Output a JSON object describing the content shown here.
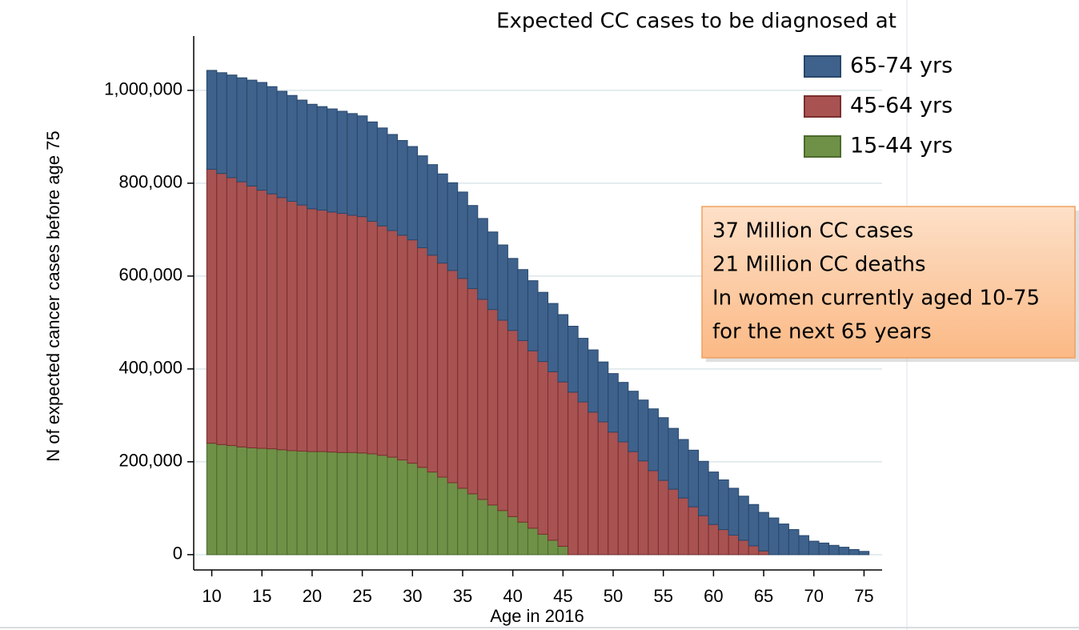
{
  "chart_data": {
    "type": "stacked_bar",
    "legend_title": "Expected CC cases to be diagnosed  at",
    "xlabel": "Age in 2016",
    "ylabel": "N of expected cancer cases before age 75",
    "annotation": [
      "37 Million CC cases",
      "21 Million CC deaths",
      "In women currently aged 10-75",
      "for the next 65 years"
    ],
    "x": [
      10,
      11,
      12,
      13,
      14,
      15,
      16,
      17,
      18,
      19,
      20,
      21,
      22,
      23,
      24,
      25,
      26,
      27,
      28,
      29,
      30,
      31,
      32,
      33,
      34,
      35,
      36,
      37,
      38,
      39,
      40,
      41,
      42,
      43,
      44,
      45,
      46,
      47,
      48,
      49,
      50,
      51,
      52,
      53,
      54,
      55,
      56,
      57,
      58,
      59,
      60,
      61,
      62,
      63,
      64,
      65,
      66,
      67,
      68,
      69,
      70,
      71,
      72,
      73,
      74,
      75
    ],
    "series": [
      {
        "name": "15-44 yrs",
        "color": "#6f9147",
        "stroke": "#4c6a2d",
        "values": [
          240000,
          237000,
          235000,
          232000,
          230000,
          229000,
          228000,
          226000,
          224000,
          223000,
          222000,
          222000,
          221000,
          220000,
          220000,
          219000,
          217000,
          214000,
          210000,
          204000,
          197000,
          188000,
          178000,
          167000,
          155000,
          143000,
          131000,
          119000,
          107000,
          95000,
          82000,
          70000,
          57000,
          44000,
          31000,
          18000,
          0,
          0,
          0,
          0,
          0,
          0,
          0,
          0,
          0,
          0,
          0,
          0,
          0,
          0,
          0,
          0,
          0,
          0,
          0,
          0,
          0,
          0,
          0,
          0,
          0,
          0,
          0,
          0,
          0,
          0
        ]
      },
      {
        "name": "45-64 yrs",
        "color": "#a85252",
        "stroke": "#7a2e2e",
        "values": [
          590000,
          584000,
          577000,
          571000,
          564000,
          556000,
          549000,
          543000,
          537000,
          530000,
          523000,
          520000,
          517000,
          515000,
          511000,
          509000,
          501000,
          494000,
          488000,
          484000,
          481000,
          473000,
          467000,
          461000,
          457000,
          452000,
          442000,
          431000,
          421000,
          410000,
          401000,
          391000,
          382000,
          372000,
          363000,
          354000,
          350000,
          329000,
          307000,
          286000,
          264000,
          243000,
          222000,
          202000,
          181000,
          160000,
          141000,
          122000,
          103000,
          84000,
          65000,
          54000,
          42000,
          31000,
          19000,
          8000,
          0,
          0,
          0,
          0,
          0,
          0,
          0,
          0,
          0,
          0
        ]
      },
      {
        "name": "65-74 yrs",
        "color": "#3f628c",
        "stroke": "#27476b",
        "values": [
          213000,
          217000,
          221000,
          224000,
          228000,
          232000,
          231000,
          229000,
          228000,
          226000,
          225000,
          223000,
          222000,
          220000,
          219000,
          217000,
          214000,
          211000,
          207000,
          204000,
          201000,
          198000,
          195000,
          192000,
          189000,
          186000,
          179000,
          174000,
          167000,
          162000,
          155000,
          153000,
          151000,
          149000,
          147000,
          145000,
          142000,
          137000,
          134000,
          129000,
          126000,
          128000,
          130000,
          131000,
          133000,
          135000,
          131000,
          126000,
          122000,
          117000,
          113000,
          107000,
          101000,
          95000,
          89000,
          83000,
          79000,
          66000,
          54000,
          41000,
          29000,
          25000,
          20000,
          16000,
          11000,
          7000
        ]
      }
    ],
    "xlim": [
      8.2,
      76.8
    ],
    "xticks": [
      10,
      15,
      20,
      25,
      30,
      35,
      40,
      45,
      50,
      55,
      60,
      65,
      70,
      75
    ],
    "ylim": [
      -33000,
      1117000
    ],
    "yticks": [
      0,
      {
        "value": 200000,
        "label": "200,000"
      },
      {
        "value": 400000,
        "label": "400,000"
      },
      {
        "value": 600000,
        "label": "600,000"
      },
      {
        "value": 800000,
        "label": "800,000"
      },
      {
        "value": 1000000,
        "label": "1,000,000"
      }
    ],
    "grid": true
  }
}
